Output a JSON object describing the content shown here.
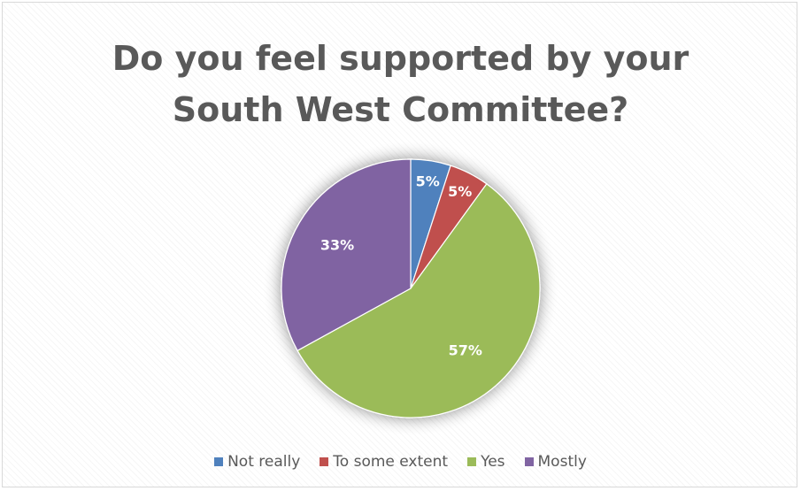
{
  "chart_data": {
    "type": "pie",
    "title_lines": [
      "Do you feel supported by your",
      "South West Committee?"
    ],
    "categories": [
      "Not really",
      "To some extent",
      "Yes",
      "Mostly"
    ],
    "values": [
      5,
      5,
      57,
      33
    ],
    "labels": [
      "5%",
      "5%",
      "57%",
      "33%"
    ],
    "colors": [
      "#4f81bd",
      "#c0504d",
      "#9bbb59",
      "#8064a2"
    ],
    "legend_position": "bottom",
    "start_angle_deg": 0,
    "direction": "clockwise"
  }
}
